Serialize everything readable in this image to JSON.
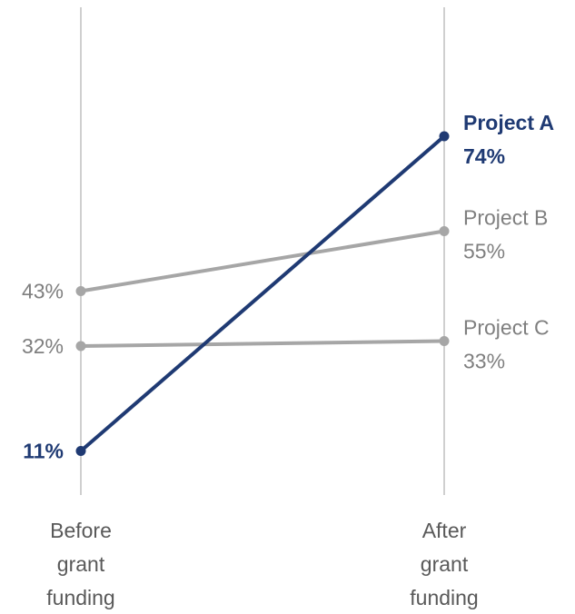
{
  "chart_data": {
    "type": "line",
    "chart_style": "slope",
    "categories": [
      [
        "Before",
        "grant",
        "funding"
      ],
      [
        "After",
        "grant",
        "funding"
      ]
    ],
    "series": [
      {
        "name": "Project A",
        "values": [
          11,
          74
        ],
        "labels": [
          "11%",
          "74%"
        ],
        "color": "#1f3a73",
        "emphasis": true
      },
      {
        "name": "Project B",
        "values": [
          43,
          55
        ],
        "labels": [
          "43%",
          "55%"
        ],
        "color": "#a6a6a6",
        "emphasis": false
      },
      {
        "name": "Project C",
        "values": [
          32,
          33
        ],
        "labels": [
          "32%",
          "33%"
        ],
        "color": "#a6a6a6",
        "emphasis": false
      }
    ],
    "label_color_muted": "#7f7f7f",
    "grid": false,
    "legend": "none"
  }
}
